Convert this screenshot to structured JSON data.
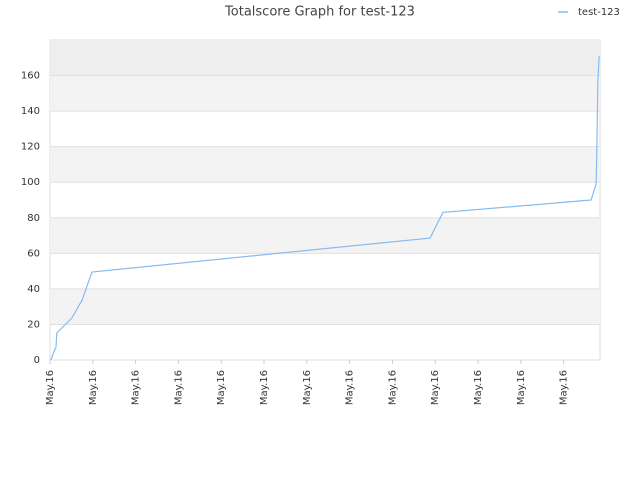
{
  "chart_data": {
    "type": "line",
    "title": "Totalscore Graph for test-123",
    "xlim": [
      0,
      12.85
    ],
    "xticks": [
      {
        "value": 0,
        "label": "May.16"
      },
      {
        "value": 1,
        "label": "May.16"
      },
      {
        "value": 2,
        "label": "May.16"
      },
      {
        "value": 3,
        "label": "May.16"
      },
      {
        "value": 4,
        "label": "May.16"
      },
      {
        "value": 5,
        "label": "May.16"
      },
      {
        "value": 6,
        "label": "May.16"
      },
      {
        "value": 7,
        "label": "May.16"
      },
      {
        "value": 8,
        "label": "May.16"
      },
      {
        "value": 9,
        "label": "May.16"
      },
      {
        "value": 10,
        "label": "May.16"
      },
      {
        "value": 11,
        "label": "May.16"
      },
      {
        "value": 12,
        "label": "May.16"
      }
    ],
    "ylim": [
      0,
      180
    ],
    "yticks": [
      0,
      20,
      40,
      60,
      80,
      100,
      120,
      140,
      160
    ],
    "grid": true,
    "legend": "top-right",
    "x": [
      0.02,
      0.09,
      0.14,
      0.16,
      0.51,
      0.75,
      0.98,
      8.88,
      9.18,
      12.64,
      12.76,
      12.78,
      12.8,
      12.83
    ],
    "series": [
      {
        "name": "test-123",
        "color": "#88bbee",
        "values": [
          0,
          4.5,
          7.3,
          15.2,
          23.6,
          33.7,
          49.5,
          68.6,
          83,
          90,
          99,
          124,
          157,
          171
        ]
      }
    ]
  }
}
